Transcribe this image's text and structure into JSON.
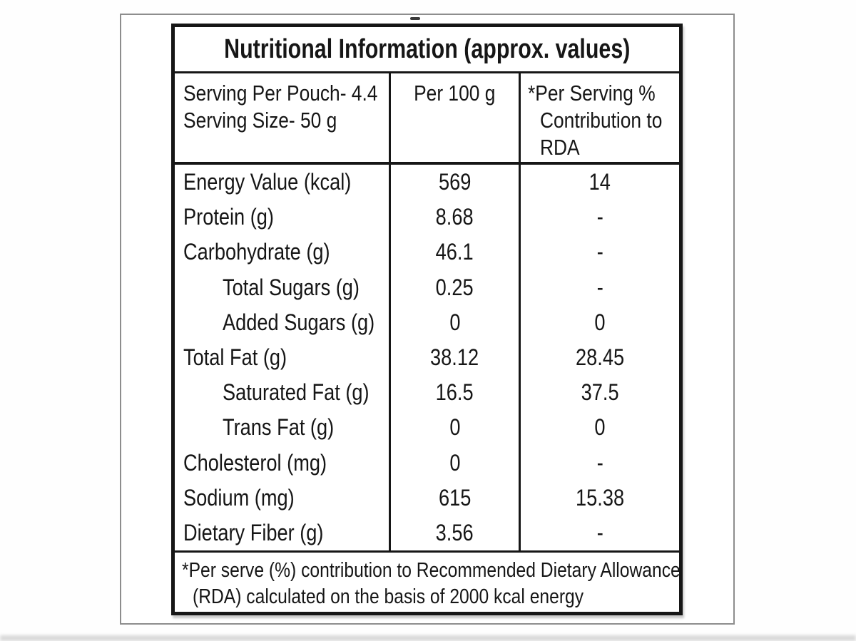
{
  "label": {
    "title": "Nutritional Information (approx. values)",
    "columns": {
      "serving_line1": "Serving Per Pouch- 4.4",
      "serving_line2": "Serving Size- 50 g",
      "per_100g": "Per 100 g",
      "rda_line1": "*Per Serving %",
      "rda_line2": "Contribution to",
      "rda_line3": "RDA"
    },
    "rows": [
      {
        "name": "Energy Value (kcal)",
        "per_100g": "569",
        "rda_percent": "14"
      },
      {
        "name": "Protein (g)",
        "per_100g": "8.68",
        "rda_percent": "-"
      },
      {
        "name": "Carbohydrate (g)",
        "per_100g": "46.1",
        "rda_percent": "-"
      },
      {
        "name": "Total Sugars (g)",
        "per_100g": "0.25",
        "rda_percent": "-"
      },
      {
        "name": "Added Sugars (g)",
        "per_100g": "0",
        "rda_percent": "0"
      },
      {
        "name": "Total Fat (g)",
        "per_100g": "38.12",
        "rda_percent": "28.45"
      },
      {
        "name": "Saturated Fat (g)",
        "per_100g": "16.5",
        "rda_percent": "37.5"
      },
      {
        "name": "Trans Fat (g)",
        "per_100g": "0",
        "rda_percent": "0"
      },
      {
        "name": "Cholesterol (mg)",
        "per_100g": "0",
        "rda_percent": "-"
      },
      {
        "name": "Sodium (mg)",
        "per_100g": "615",
        "rda_percent": "15.38"
      },
      {
        "name": "Dietary Fiber (g)",
        "per_100g": "3.56",
        "rda_percent": "-"
      }
    ],
    "footnote_line1": "*Per serve (%) contribution to Recommended Dietary Allowance",
    "footnote_line2": "(RDA) calculated on the basis of 2000 kcal energy"
  },
  "colors": {
    "border_black": "#161616",
    "frame_gray": "#8d8d8d",
    "text": "#161616",
    "background": "#ffffff"
  }
}
